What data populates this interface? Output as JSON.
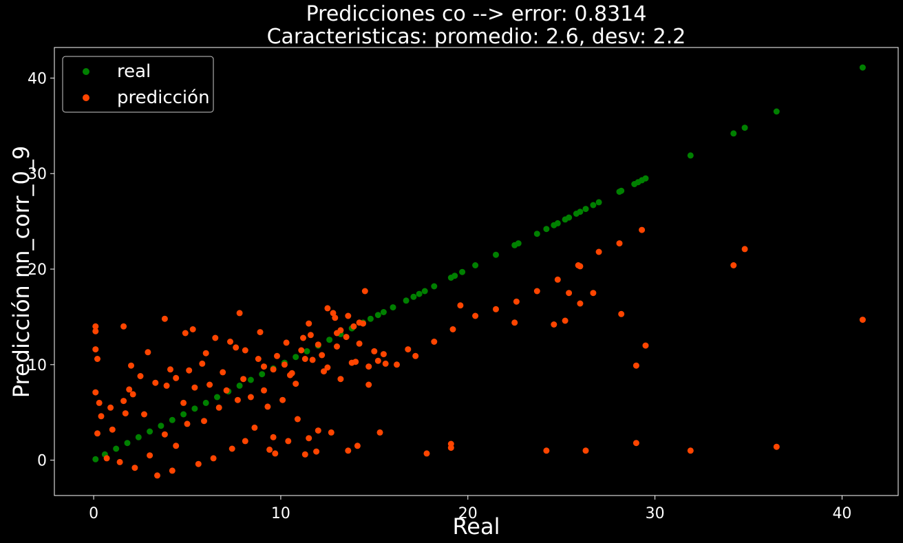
{
  "chart_data": {
    "type": "scatter",
    "title_line1": "Predicciones co --> error: 0.8314",
    "title_line2": "Caracteristicas: promedio: 2.6, desv: 2.2",
    "xlabel": "Real",
    "ylabel": "Predicción nn_corr_0_9",
    "xlim": [
      -2.1,
      43.0
    ],
    "ylim": [
      -3.7,
      43.2
    ],
    "xticks": [
      0,
      10,
      20,
      30,
      40
    ],
    "yticks": [
      0,
      10,
      20,
      30,
      40
    ],
    "xtick_labels": [
      "0",
      "10",
      "20",
      "30",
      "40"
    ],
    "ytick_labels": [
      "0",
      "10",
      "20",
      "30",
      "40"
    ],
    "grid": false,
    "background": "#000000",
    "legend": {
      "position": "top-left",
      "entries": [
        "real",
        "predicción"
      ]
    },
    "series": [
      {
        "name": "real",
        "color": "#008000",
        "note_x_equals_y": true,
        "points": [
          [
            0.1,
            0.1
          ],
          [
            0.6,
            0.6
          ],
          [
            1.2,
            1.2
          ],
          [
            1.8,
            1.8
          ],
          [
            2.4,
            2.4
          ],
          [
            3.0,
            3.0
          ],
          [
            3.6,
            3.6
          ],
          [
            4.2,
            4.2
          ],
          [
            4.8,
            4.8
          ],
          [
            5.4,
            5.4
          ],
          [
            6.0,
            6.0
          ],
          [
            6.6,
            6.6
          ],
          [
            7.2,
            7.2
          ],
          [
            7.8,
            7.8
          ],
          [
            8.4,
            8.4
          ],
          [
            9.0,
            9.0
          ],
          [
            9.6,
            9.6
          ],
          [
            10.2,
            10.2
          ],
          [
            10.8,
            10.8
          ],
          [
            11.4,
            11.4
          ],
          [
            12.0,
            12.0
          ],
          [
            12.6,
            12.6
          ],
          [
            13.2,
            13.2
          ],
          [
            13.8,
            13.8
          ],
          [
            14.4,
            14.4
          ],
          [
            14.8,
            14.8
          ],
          [
            15.2,
            15.2
          ],
          [
            15.5,
            15.5
          ],
          [
            16.0,
            16.0
          ],
          [
            16.7,
            16.7
          ],
          [
            17.1,
            17.1
          ],
          [
            17.4,
            17.4
          ],
          [
            17.7,
            17.7
          ],
          [
            18.2,
            18.2
          ],
          [
            19.1,
            19.1
          ],
          [
            19.3,
            19.3
          ],
          [
            19.7,
            19.7
          ],
          [
            20.4,
            20.4
          ],
          [
            21.5,
            21.5
          ],
          [
            22.5,
            22.5
          ],
          [
            22.7,
            22.7
          ],
          [
            23.7,
            23.7
          ],
          [
            24.2,
            24.2
          ],
          [
            24.6,
            24.6
          ],
          [
            24.8,
            24.8
          ],
          [
            25.2,
            25.2
          ],
          [
            25.4,
            25.4
          ],
          [
            25.8,
            25.8
          ],
          [
            26.0,
            26.0
          ],
          [
            26.3,
            26.3
          ],
          [
            26.7,
            26.7
          ],
          [
            27.0,
            27.0
          ],
          [
            28.1,
            28.1
          ],
          [
            28.2,
            28.2
          ],
          [
            28.9,
            28.9
          ],
          [
            29.1,
            29.1
          ],
          [
            29.3,
            29.3
          ],
          [
            29.5,
            29.5
          ],
          [
            31.9,
            31.9
          ],
          [
            34.2,
            34.2
          ],
          [
            34.8,
            34.8
          ],
          [
            36.5,
            36.5
          ],
          [
            41.1,
            41.1
          ]
        ]
      },
      {
        "name": "predicción",
        "color": "#FF4500",
        "points": [
          [
            0.1,
            14.0
          ],
          [
            0.1,
            13.5
          ],
          [
            0.1,
            11.6
          ],
          [
            0.2,
            10.6
          ],
          [
            0.1,
            7.1
          ],
          [
            1.6,
            14.0
          ],
          [
            3.8,
            14.8
          ],
          [
            5.3,
            13.7
          ],
          [
            7.8,
            15.4
          ],
          [
            4.9,
            13.3
          ],
          [
            12.5,
            15.9
          ],
          [
            12.8,
            15.4
          ],
          [
            14.5,
            17.7
          ],
          [
            11.5,
            14.3
          ],
          [
            8.9,
            13.4
          ],
          [
            2.0,
            9.9
          ],
          [
            2.9,
            11.3
          ],
          [
            15.2,
            10.4
          ],
          [
            15.0,
            11.4
          ],
          [
            15.5,
            11.1
          ],
          [
            15.6,
            10.1
          ],
          [
            16.2,
            10.0
          ],
          [
            16.8,
            11.6
          ],
          [
            17.2,
            10.9
          ],
          [
            18.2,
            12.4
          ],
          [
            19.2,
            13.7
          ],
          [
            19.6,
            16.2
          ],
          [
            20.4,
            15.1
          ],
          [
            21.5,
            15.8
          ],
          [
            22.5,
            14.4
          ],
          [
            22.6,
            16.6
          ],
          [
            23.7,
            17.7
          ],
          [
            24.6,
            14.2
          ],
          [
            24.8,
            18.9
          ],
          [
            25.2,
            14.6
          ],
          [
            25.4,
            17.5
          ],
          [
            25.9,
            20.4
          ],
          [
            26.0,
            20.3
          ],
          [
            26.0,
            16.4
          ],
          [
            26.7,
            17.5
          ],
          [
            27.0,
            21.8
          ],
          [
            28.1,
            22.7
          ],
          [
            28.2,
            15.3
          ],
          [
            29.0,
            9.9
          ],
          [
            29.3,
            24.1
          ],
          [
            29.5,
            12.0
          ],
          [
            34.2,
            20.4
          ],
          [
            34.8,
            22.1
          ],
          [
            41.1,
            14.7
          ],
          [
            15.3,
            2.9
          ],
          [
            11.3,
            0.6
          ],
          [
            11.9,
            0.9
          ],
          [
            12.0,
            3.1
          ],
          [
            12.7,
            2.9
          ],
          [
            13.6,
            1.0
          ],
          [
            14.1,
            1.5
          ],
          [
            17.8,
            0.7
          ],
          [
            19.1,
            1.7
          ],
          [
            19.1,
            1.3
          ],
          [
            24.2,
            1.0
          ],
          [
            26.3,
            1.0
          ],
          [
            29.0,
            1.8
          ],
          [
            31.9,
            1.0
          ],
          [
            36.5,
            1.4
          ],
          [
            9.6,
            2.4
          ],
          [
            9.4,
            1.1
          ],
          [
            9.7,
            0.7
          ],
          [
            10.4,
            2.0
          ],
          [
            11.5,
            2.3
          ],
          [
            10.9,
            4.3
          ],
          [
            12.5,
            9.7
          ],
          [
            13.5,
            12.9
          ],
          [
            14.7,
            9.8
          ],
          [
            14.7,
            7.9
          ],
          [
            13.8,
            10.2
          ],
          [
            13.0,
            11.9
          ],
          [
            9.8,
            10.9
          ],
          [
            10.3,
            12.3
          ],
          [
            11.2,
            12.8
          ],
          [
            10.6,
            9.1
          ],
          [
            9.1,
            7.3
          ],
          [
            8.8,
            10.6
          ],
          [
            8.1,
            11.5
          ],
          [
            7.6,
            11.8
          ],
          [
            6.5,
            12.8
          ],
          [
            6.9,
            9.2
          ],
          [
            5.8,
            10.1
          ],
          [
            5.1,
            9.4
          ],
          [
            4.1,
            9.5
          ],
          [
            3.3,
            8.1
          ],
          [
            2.5,
            8.8
          ],
          [
            1.9,
            7.4
          ],
          [
            1.6,
            6.2
          ],
          [
            0.9,
            5.5
          ],
          [
            0.3,
            6.0
          ],
          [
            2.2,
            -0.8
          ],
          [
            3.4,
            -1.6
          ],
          [
            4.2,
            -1.1
          ],
          [
            5.6,
            -0.4
          ],
          [
            6.4,
            0.2
          ],
          [
            7.4,
            1.2
          ],
          [
            8.1,
            2.0
          ],
          [
            8.6,
            3.4
          ],
          [
            9.3,
            5.6
          ],
          [
            10.1,
            6.3
          ],
          [
            10.8,
            8.0
          ],
          [
            11.7,
            10.5
          ],
          [
            12.2,
            11.0
          ],
          [
            13.2,
            13.6
          ],
          [
            14.2,
            12.2
          ],
          [
            14.4,
            14.3
          ],
          [
            14.0,
            10.3
          ],
          [
            13.2,
            8.5
          ],
          [
            12.3,
            9.3
          ],
          [
            11.3,
            10.6
          ],
          [
            10.5,
            8.9
          ],
          [
            9.6,
            9.5
          ],
          [
            8.4,
            6.6
          ],
          [
            7.7,
            6.3
          ],
          [
            6.7,
            5.5
          ],
          [
            5.9,
            4.1
          ],
          [
            5.0,
            3.8
          ],
          [
            3.8,
            2.7
          ],
          [
            3.0,
            0.5
          ],
          [
            1.4,
            -0.2
          ],
          [
            0.7,
            0.2
          ],
          [
            0.2,
            2.8
          ],
          [
            0.4,
            4.6
          ],
          [
            1.0,
            3.2
          ],
          [
            1.7,
            4.9
          ],
          [
            2.7,
            4.8
          ],
          [
            4.4,
            1.5
          ],
          [
            4.8,
            6.0
          ],
          [
            5.4,
            7.6
          ],
          [
            6.2,
            7.9
          ],
          [
            7.1,
            7.3
          ],
          [
            8.0,
            8.5
          ],
          [
            9.1,
            9.8
          ],
          [
            10.2,
            10.0
          ],
          [
            11.1,
            11.5
          ],
          [
            12.0,
            12.1
          ],
          [
            13.0,
            13.3
          ],
          [
            13.9,
            14.0
          ],
          [
            14.2,
            14.4
          ],
          [
            4.4,
            8.6
          ],
          [
            3.9,
            7.8
          ],
          [
            2.1,
            6.9
          ],
          [
            7.3,
            12.4
          ],
          [
            6.0,
            11.2
          ],
          [
            11.6,
            13.1
          ],
          [
            12.9,
            14.9
          ],
          [
            13.6,
            15.1
          ]
        ]
      }
    ]
  }
}
